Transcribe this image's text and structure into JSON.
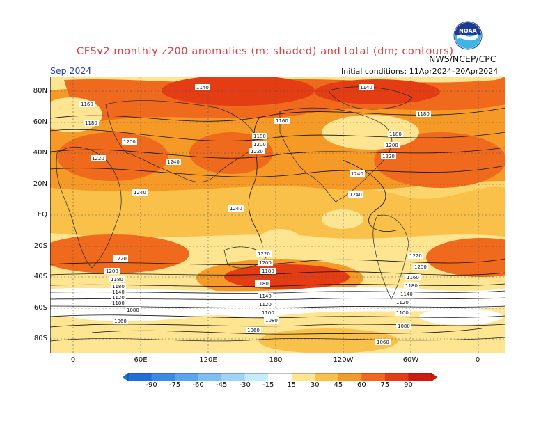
{
  "header": {
    "title": "CFSv2 monthly z200 anomalies (m; shaded) and total (dm; contours)",
    "agency": "NWS/NCEP/CPC",
    "logo_text": "NOAA",
    "month": "Sep 2024",
    "initial_conditions": "Initial conditions: 11Apr2024–20Apr2024"
  },
  "map": {
    "lat_labels": [
      "80N",
      "60N",
      "40N",
      "20N",
      "EQ",
      "20S",
      "40S",
      "60S",
      "80S"
    ],
    "lon_labels": [
      "0",
      "60E",
      "120E",
      "180",
      "120W",
      "60W",
      "0"
    ],
    "contour_labels": [
      "1140",
      "1160",
      "1180",
      "1200",
      "1220",
      "1240",
      "1080",
      "1060",
      "1100",
      "1120"
    ]
  },
  "colorbar": {
    "levels": [
      "-90",
      "-75",
      "-60",
      "-45",
      "-30",
      "-15",
      "15",
      "30",
      "45",
      "60",
      "75",
      "90"
    ],
    "colors": [
      "#1f6fd6",
      "#3a8ae6",
      "#5aa5f0",
      "#7bbff5",
      "#9fd4f8",
      "#c4ecfb",
      "#ffffff",
      "#fde592",
      "#f9c04a",
      "#f59a27",
      "#ef6a1d",
      "#e43d14",
      "#cc1c0f"
    ]
  }
}
